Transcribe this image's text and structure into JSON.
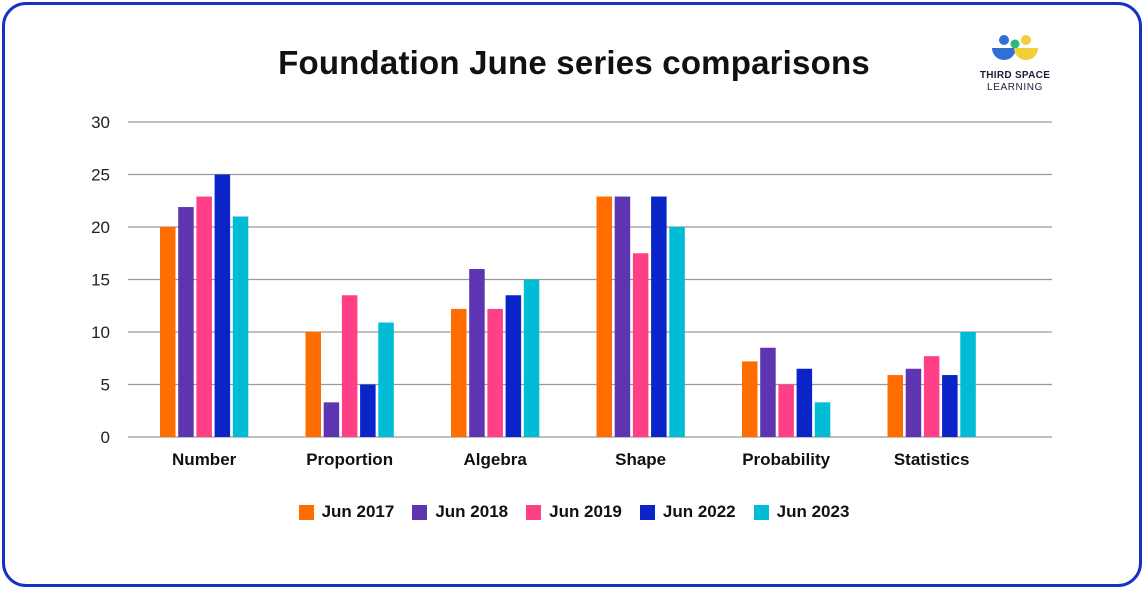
{
  "logo": {
    "line1": "THIRD SPACE",
    "line2": "LEARNING"
  },
  "colors": {
    "border": "#1532c2",
    "grid": "#9a9a9a"
  },
  "chart_data": {
    "type": "bar",
    "title": "Foundation June series comparisons",
    "xlabel": "",
    "ylabel": "",
    "ylim": [
      0,
      30
    ],
    "yticks": [
      "0",
      "5",
      "10",
      "15",
      "20",
      "25",
      "30"
    ],
    "grid": true,
    "legend_position": "bottom",
    "categories": [
      "Number",
      "Proportion",
      "Algebra",
      "Shape",
      "Probability",
      "Statistics"
    ],
    "series": [
      {
        "name": "Jun 2017",
        "color": "#ff6d00",
        "values": [
          20,
          10,
          12.2,
          22.9,
          7.2,
          5.9
        ]
      },
      {
        "name": "Jun 2018",
        "color": "#5e35b1",
        "values": [
          21.9,
          3.3,
          16,
          22.9,
          8.5,
          6.5
        ]
      },
      {
        "name": "Jun 2019",
        "color": "#ff3f86",
        "values": [
          22.9,
          13.5,
          12.2,
          17.5,
          5,
          7.7
        ]
      },
      {
        "name": "Jun 2022",
        "color": "#0b24c8",
        "values": [
          25,
          5,
          13.5,
          22.9,
          6.5,
          5.9
        ]
      },
      {
        "name": "Jun 2023",
        "color": "#00bcd4",
        "values": [
          21,
          10.9,
          15,
          20,
          3.3,
          10
        ]
      }
    ]
  }
}
